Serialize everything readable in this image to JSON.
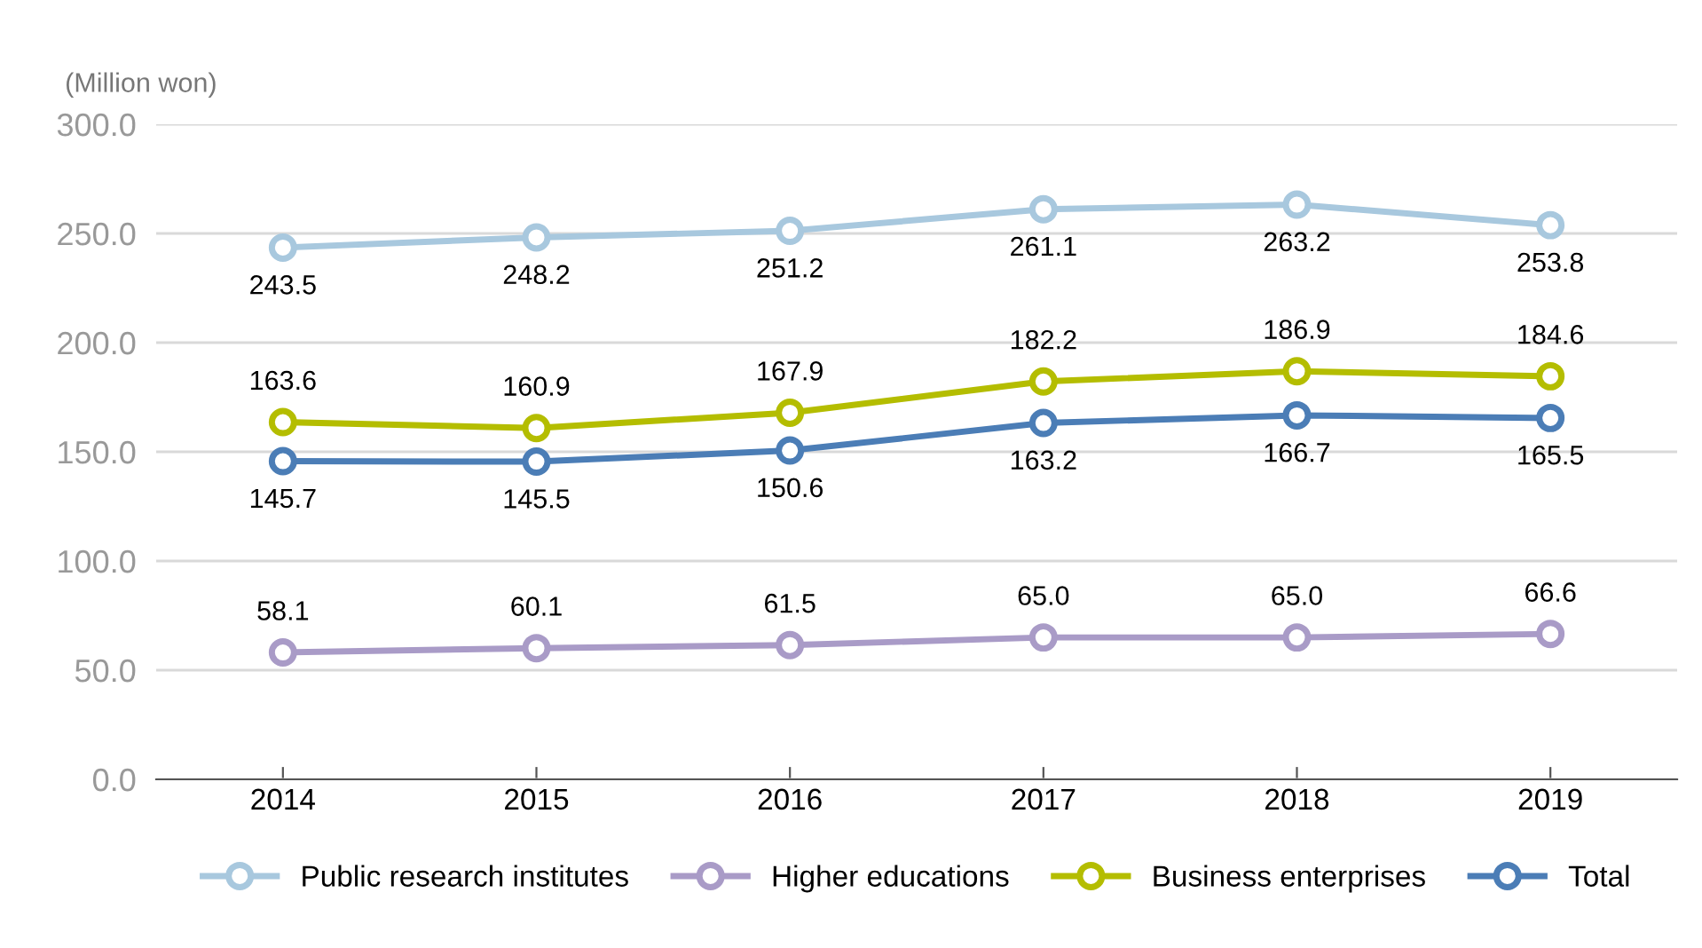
{
  "chart_data": {
    "type": "line",
    "ylabel": "(Million won)",
    "categories": [
      "2014",
      "2015",
      "2016",
      "2017",
      "2018",
      "2019"
    ],
    "series": [
      {
        "name": "Public research institutes",
        "color": "#a8c8de",
        "values": [
          243.5,
          248.2,
          251.2,
          261.1,
          263.2,
          253.8
        ],
        "value_labels": [
          "243.5",
          "248.2",
          "251.2",
          "261.1",
          "263.2",
          "253.8"
        ]
      },
      {
        "name": "Higher educations",
        "color": "#a99bc7",
        "values": [
          58.1,
          60.1,
          61.5,
          65.0,
          65.0,
          66.6
        ],
        "value_labels": [
          "58.1",
          "60.1",
          "61.5",
          "65.0",
          "65.0",
          "66.6"
        ]
      },
      {
        "name": "Business enterprises",
        "color": "#b4bd00",
        "values": [
          163.6,
          160.9,
          167.9,
          182.2,
          186.9,
          184.6
        ],
        "value_labels": [
          "163.6",
          "160.9",
          "167.9",
          "182.2",
          "186.9",
          "184.6"
        ]
      },
      {
        "name": "Total",
        "color": "#4b7db6",
        "values": [
          145.7,
          145.5,
          150.6,
          163.2,
          166.7,
          165.5
        ],
        "value_labels": [
          "145.7",
          "145.5",
          "150.6",
          "163.2",
          "166.7",
          "165.5"
        ]
      }
    ],
    "ylim": [
      0,
      300
    ],
    "yticks": [
      {
        "value": 0,
        "label": "0.0"
      },
      {
        "value": 50,
        "label": "50.0"
      },
      {
        "value": 100,
        "label": "100.0"
      },
      {
        "value": 150,
        "label": "150.0"
      },
      {
        "value": 200,
        "label": "200.0"
      },
      {
        "value": 250,
        "label": "250.0"
      },
      {
        "value": 300,
        "label": "300.0"
      }
    ],
    "grid": "y",
    "legend": "bottom",
    "marker": "circle",
    "line_style": "solid"
  }
}
